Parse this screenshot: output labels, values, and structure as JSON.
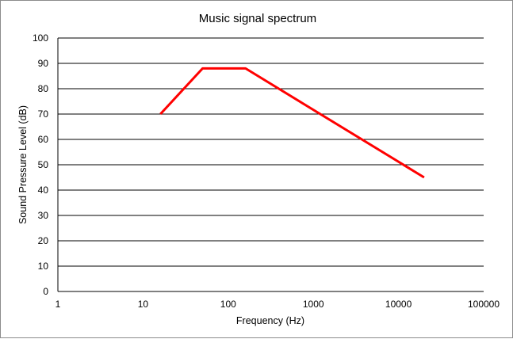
{
  "chart_data": {
    "type": "line",
    "title": "Music signal spectrum",
    "xlabel": "Frequency (Hz)",
    "ylabel": "Sound Pressure Level (dB)",
    "x_scale": "log",
    "xlim": [
      1,
      100000
    ],
    "ylim": [
      0,
      100
    ],
    "x_ticks": [
      "1",
      "10",
      "100",
      "1000",
      "10000",
      "100000"
    ],
    "y_ticks": [
      "0",
      "10",
      "20",
      "30",
      "40",
      "50",
      "60",
      "70",
      "80",
      "90",
      "100"
    ],
    "grid": "horizontal",
    "legend": "none",
    "series": [
      {
        "color": "#ff0000",
        "x": [
          16,
          50,
          160,
          20000
        ],
        "y": [
          70,
          88,
          88,
          45
        ]
      }
    ]
  }
}
